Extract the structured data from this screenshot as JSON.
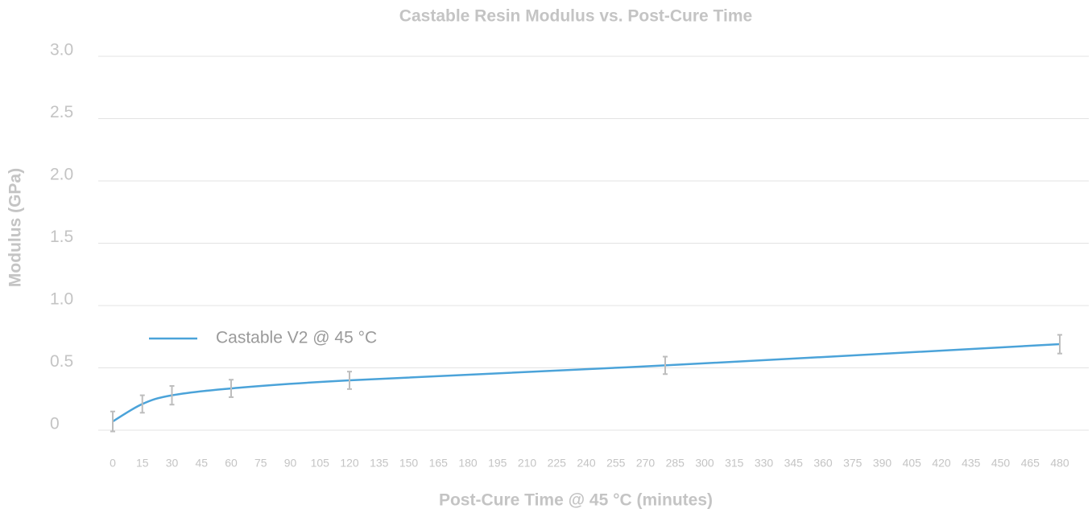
{
  "chart_data": {
    "type": "line",
    "title": "Castable Resin Modulus vs. Post-Cure Time",
    "xlabel": "Post-Cure Time @ 45 °C (minutes)",
    "ylabel": "Modulus (GPa)",
    "x": [
      0,
      15,
      30,
      60,
      120,
      280,
      480
    ],
    "series": [
      {
        "name": "Castable V2 @ 45 °C",
        "color": "#4ba3d9",
        "values": [
          0.07,
          0.21,
          0.28,
          0.335,
          0.4,
          0.52,
          0.69
        ],
        "errors": [
          0.08,
          0.07,
          0.075,
          0.07,
          0.07,
          0.07,
          0.075
        ]
      }
    ],
    "error_color": "#bdbdbd",
    "xlim": [
      0,
      480
    ],
    "xticks": [
      0,
      15,
      30,
      45,
      60,
      75,
      90,
      105,
      120,
      135,
      150,
      165,
      180,
      195,
      210,
      225,
      240,
      255,
      270,
      285,
      300,
      315,
      330,
      345,
      360,
      375,
      390,
      405,
      420,
      435,
      450,
      465,
      480
    ],
    "ylim": [
      0,
      3
    ],
    "yticks": [
      0,
      0.5,
      {
        "value": 1,
        "label": "1.0"
      },
      1.5,
      {
        "value": 2,
        "label": "2.0"
      },
      2.5,
      {
        "value": 3,
        "label": "3.0"
      }
    ],
    "grid": true,
    "legend": "left"
  }
}
